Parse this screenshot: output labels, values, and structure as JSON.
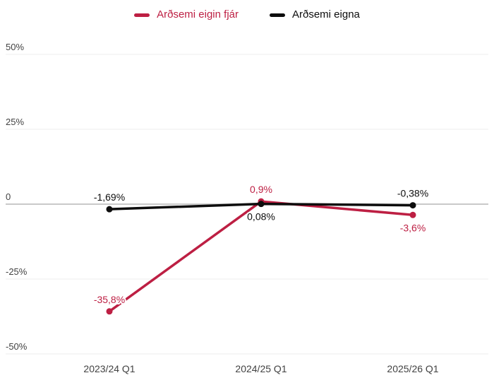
{
  "chart_data": {
    "type": "line",
    "title": "",
    "xlabel": "",
    "ylabel": "",
    "categories": [
      "2023/24 Q1",
      "2024/25 Q1",
      "2025/26 Q1"
    ],
    "series": [
      {
        "name": "Arðsemi eigin fjár",
        "color": "#bd1f43",
        "values": [
          -35.8,
          0.9,
          -3.6
        ],
        "point_labels": [
          "-35,8%",
          "0,9%",
          "-3,6%"
        ],
        "label_positions": [
          "above",
          "above",
          "below"
        ]
      },
      {
        "name": "Arðsemi eigna",
        "color": "#0d0d0d",
        "values": [
          -1.69,
          0.08,
          -0.38
        ],
        "point_labels": [
          "-1,69%",
          "0,08%",
          "-0,38%"
        ],
        "label_positions": [
          "above",
          "below",
          "above"
        ]
      }
    ],
    "yaxis": {
      "range": [
        -50,
        50
      ],
      "ticks": [
        {
          "label": "50%",
          "value": 50
        },
        {
          "label": "25%",
          "value": 25
        },
        {
          "label": "0",
          "value": 0
        },
        {
          "label": "-25%",
          "value": -25
        },
        {
          "label": "-50%",
          "value": -50
        }
      ]
    },
    "legend_position": "top",
    "grid": true,
    "colors": {
      "background": "#ffffff",
      "gridline": "#ececec",
      "zero_line": "#c9c9c9",
      "axis_text": "#424242"
    }
  }
}
